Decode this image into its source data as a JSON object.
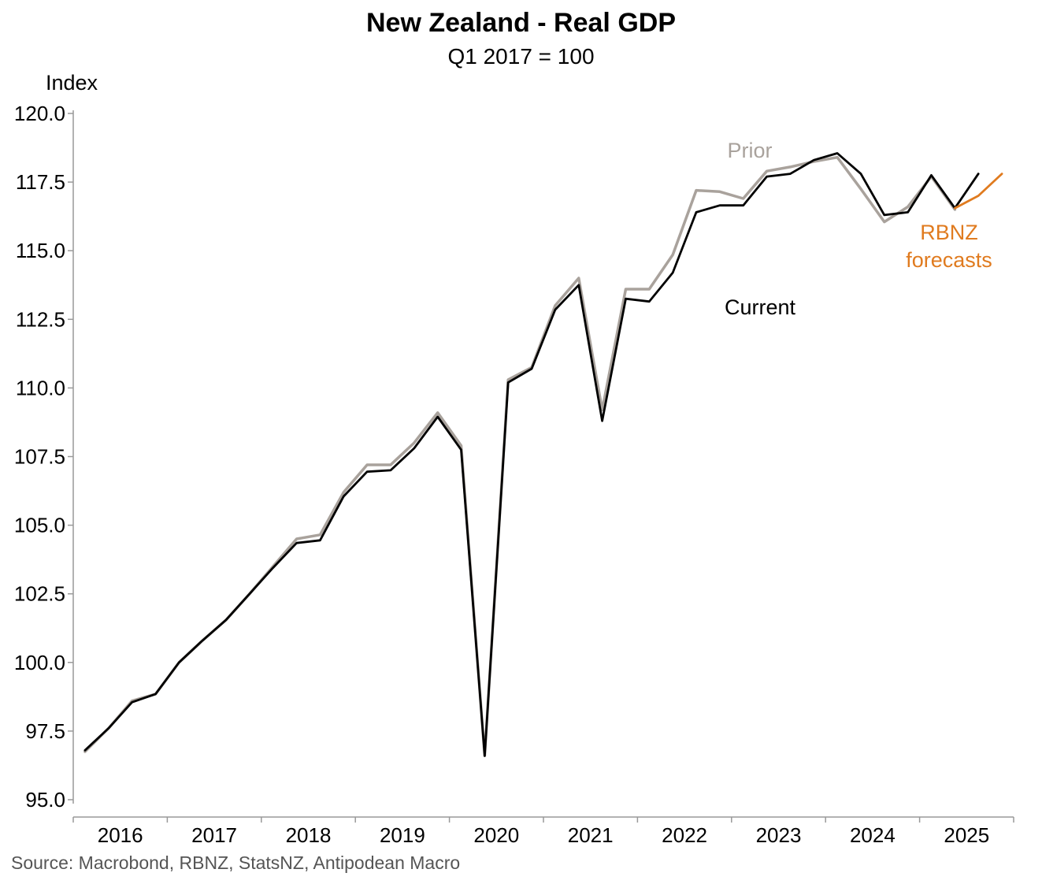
{
  "chart_data": {
    "type": "line",
    "title": "New Zealand - Real GDP",
    "subtitle": "Q1 2017 = 100",
    "ylabel": "Index",
    "xlabel": "",
    "ylim": [
      95.0,
      120.0
    ],
    "yticks": [
      95.0,
      97.5,
      100.0,
      102.5,
      105.0,
      107.5,
      110.0,
      112.5,
      115.0,
      117.5,
      120.0
    ],
    "ytick_labels": [
      "95.0",
      "97.5",
      "100.0",
      "102.5",
      "105.0",
      "107.5",
      "110.0",
      "112.5",
      "115.0",
      "117.5",
      "120.0"
    ],
    "xlim": [
      2016.0,
      2026.0
    ],
    "year_labels": [
      "2016",
      "2017",
      "2018",
      "2019",
      "2020",
      "2021",
      "2022",
      "2023",
      "2024",
      "2025"
    ],
    "x_start": 2016.125,
    "x_step": 0.25,
    "grid": false,
    "series": [
      {
        "name": "Prior",
        "color": "#a9a29c",
        "start_index": 0,
        "values": [
          96.75,
          97.6,
          98.6,
          98.85,
          100.0,
          100.8,
          101.55,
          102.5,
          103.5,
          104.5,
          104.65,
          106.2,
          107.2,
          107.2,
          108.0,
          109.1,
          107.9,
          96.6,
          110.3,
          110.75,
          113.0,
          114.0,
          109.2,
          113.6,
          113.6,
          114.85,
          117.2,
          117.15,
          116.9,
          117.9,
          118.05,
          118.25,
          118.4,
          117.25,
          116.05,
          116.6,
          117.7,
          116.5
        ]
      },
      {
        "name": "Current",
        "color": "#000000",
        "start_index": 0,
        "values": [
          96.8,
          97.6,
          98.55,
          98.85,
          100.0,
          100.8,
          101.55,
          102.5,
          103.45,
          104.35,
          104.45,
          106.05,
          106.95,
          107.0,
          107.8,
          108.95,
          107.75,
          96.6,
          110.2,
          110.7,
          112.85,
          113.75,
          108.8,
          113.25,
          113.15,
          114.2,
          116.4,
          116.65,
          116.65,
          117.7,
          117.8,
          118.3,
          118.55,
          117.8,
          116.3,
          116.4,
          117.75,
          116.55,
          117.8
        ]
      },
      {
        "name": "RBNZ forecasts",
        "color": "#e07b1f",
        "start_index": 37,
        "values": [
          116.55,
          117.0,
          117.8
        ]
      }
    ],
    "annotations": [
      {
        "text": "Prior",
        "color": "#a9a29c"
      },
      {
        "text": "Current",
        "color": "#000000"
      },
      {
        "text": "RBNZ",
        "color": "#e07b1f"
      },
      {
        "text": "forecasts",
        "color": "#e07b1f"
      }
    ],
    "source": "Source: Macrobond, RBNZ, StatsNZ, Antipodean Macro"
  }
}
